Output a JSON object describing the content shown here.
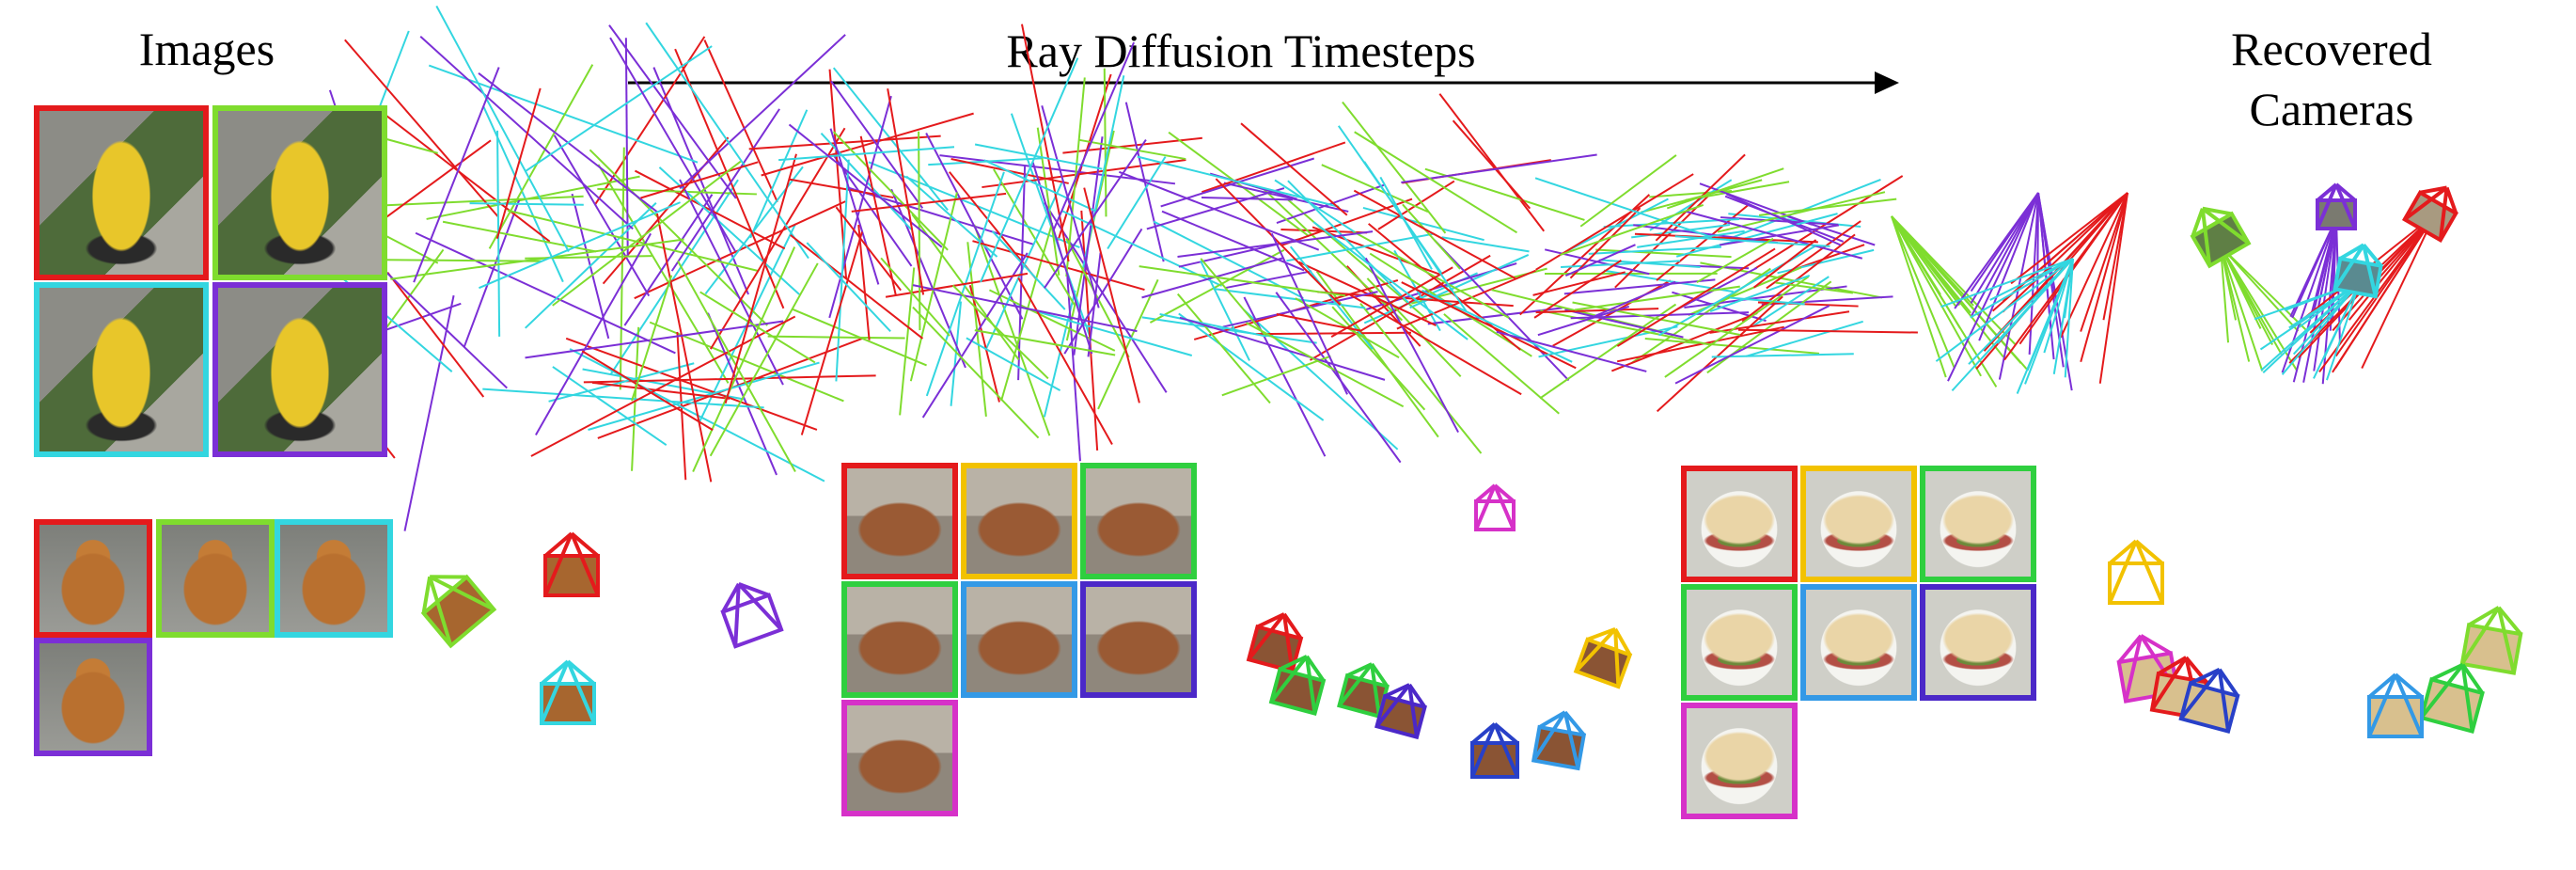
{
  "titles": {
    "images": "Images",
    "ray_diffusion": "Ray Diffusion Timesteps",
    "recovered": "Recovered Cameras"
  },
  "colors": {
    "red": "#e41a1c",
    "lime": "#7fdc2e",
    "cyan": "#33d6e0",
    "purple": "#7b2fd6",
    "yellow": "#f2c200",
    "green": "#2fcf3f",
    "blue": "#3399e6",
    "indigo": "#4b28c8",
    "magenta": "#d631c8",
    "navy": "#2840c8",
    "arrow": "#000000"
  },
  "rows": [
    {
      "object": "fire-hydrant",
      "images": [
        {
          "frame": "red",
          "subject": "hydrant"
        },
        {
          "frame": "lime",
          "subject": "hydrant"
        },
        {
          "frame": "cyan",
          "subject": "hydrant"
        },
        {
          "frame": "purple",
          "subject": "hydrant"
        }
      ],
      "diffusion_stages": [
        "t0",
        "t1",
        "t2",
        "t3",
        "t4"
      ]
    },
    {
      "object": "teddy-bear",
      "images": [
        {
          "frame": "red",
          "subject": "teddy"
        },
        {
          "frame": "lime",
          "subject": "teddy"
        },
        {
          "frame": "cyan",
          "subject": "teddy"
        },
        {
          "frame": "purple",
          "subject": "teddy"
        }
      ]
    },
    {
      "object": "couch",
      "images": [
        {
          "frame": "red",
          "subject": "couch"
        },
        {
          "frame": "yellow",
          "subject": "couch"
        },
        {
          "frame": "green",
          "subject": "couch"
        },
        {
          "frame": "green",
          "subject": "couch"
        },
        {
          "frame": "blue",
          "subject": "couch"
        },
        {
          "frame": "indigo",
          "subject": "couch"
        },
        {
          "frame": "magenta",
          "subject": "couch"
        }
      ]
    },
    {
      "object": "sandwich",
      "images": [
        {
          "frame": "red",
          "subject": "sandwich"
        },
        {
          "frame": "yellow",
          "subject": "sandwich"
        },
        {
          "frame": "green",
          "subject": "sandwich"
        },
        {
          "frame": "green",
          "subject": "sandwich"
        },
        {
          "frame": "blue",
          "subject": "sandwich"
        },
        {
          "frame": "indigo",
          "subject": "sandwich"
        },
        {
          "frame": "magenta",
          "subject": "sandwich"
        }
      ]
    }
  ]
}
